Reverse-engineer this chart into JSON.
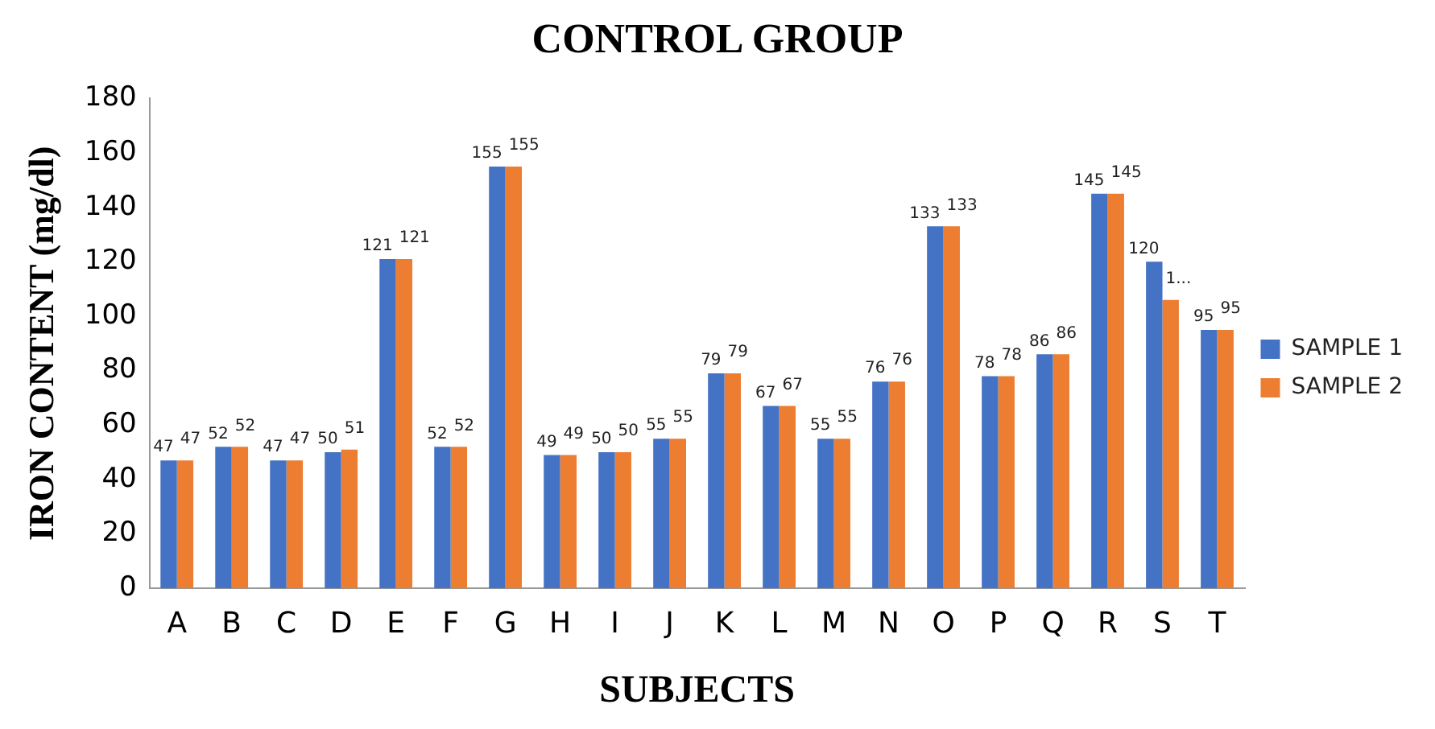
{
  "chart_data": {
    "type": "bar",
    "title": "CONTROL GROUP",
    "xlabel": "SUBJECTS",
    "ylabel": "IRON CONTENT (mg/dl)",
    "categories": [
      "A",
      "B",
      "C",
      "D",
      "E",
      "F",
      "G",
      "H",
      "I",
      "J",
      "K",
      "L",
      "M",
      "N",
      "O",
      "P",
      "Q",
      "R",
      "S",
      "T"
    ],
    "series": [
      {
        "name": "SAMPLE 1",
        "color": "#4472c4",
        "values": [
          47,
          52,
          47,
          50,
          121,
          52,
          155,
          49,
          50,
          55,
          79,
          67,
          55,
          76,
          133,
          78,
          86,
          145,
          120,
          95
        ],
        "value_labels": [
          "47",
          "52",
          "47",
          "50",
          "121",
          "52",
          "155",
          "49",
          "50",
          "55",
          "79",
          "67",
          "55",
          "76",
          "133",
          "78",
          "86",
          "145",
          "120",
          "95"
        ]
      },
      {
        "name": "SAMPLE 2",
        "color": "#ed7d31",
        "values": [
          47,
          52,
          47,
          51,
          121,
          52,
          155,
          49,
          50,
          55,
          79,
          67,
          55,
          76,
          133,
          78,
          86,
          145,
          106,
          95
        ],
        "value_labels": [
          "47",
          "52",
          "47",
          "51",
          "121",
          "52",
          "155",
          "49",
          "50",
          "55",
          "79",
          "67",
          "55",
          "76",
          "133",
          "78",
          "86",
          "145",
          "1...",
          "95"
        ]
      }
    ],
    "ylim": [
      0,
      180
    ],
    "yticks": [
      0,
      20,
      40,
      60,
      80,
      100,
      120,
      140,
      160,
      180
    ],
    "grid": false,
    "legend": "right"
  }
}
